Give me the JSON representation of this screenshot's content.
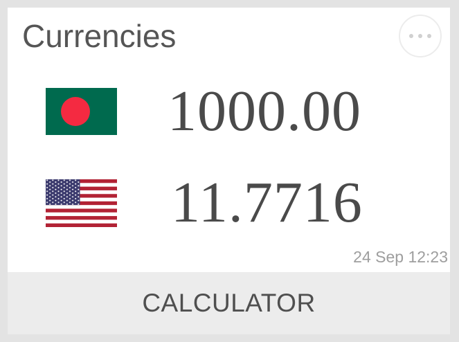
{
  "widget": {
    "title": "Currencies",
    "more_icon": "more-horizontal-icon"
  },
  "rows": [
    {
      "flag_icon": "bangladesh-flag-icon",
      "amount": "1000.00",
      "flag_colors": {
        "field": "#006a4e",
        "disc": "#f42a41"
      }
    },
    {
      "flag_icon": "united-states-flag-icon",
      "amount": "11.7716",
      "flag_colors": {
        "red": "#b22234",
        "white": "#ffffff",
        "blue": "#3c3b6e"
      }
    }
  ],
  "timestamp": "24 Sep 12:23",
  "calculator_label": "CALCULATOR",
  "colors": {
    "background": "#e3e3e3",
    "card": "#ffffff",
    "footer": "#ececec",
    "text": "#555555",
    "muted": "#9e9e9e"
  }
}
